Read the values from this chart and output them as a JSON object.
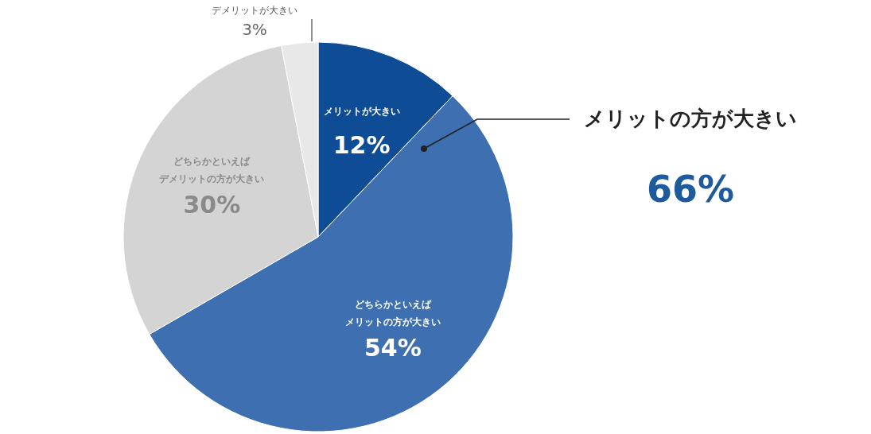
{
  "chart_data": {
    "type": "pie",
    "categories": [
      "メリットが大きい",
      "どちらかといえばメリットの方が大きい",
      "どちらかといえばデメリットの方が大きい",
      "デメリットが大きい"
    ],
    "values": [
      12,
      54,
      30,
      3
    ],
    "colors": [
      "#0f4c96",
      "#3d6fb1",
      "#d4d4d4",
      "#e8e8e8"
    ],
    "value_labels": [
      "12%",
      "54%",
      "30%",
      "3%"
    ],
    "annotations": [
      "メリットの方が大きい",
      "66%"
    ]
  }
}
